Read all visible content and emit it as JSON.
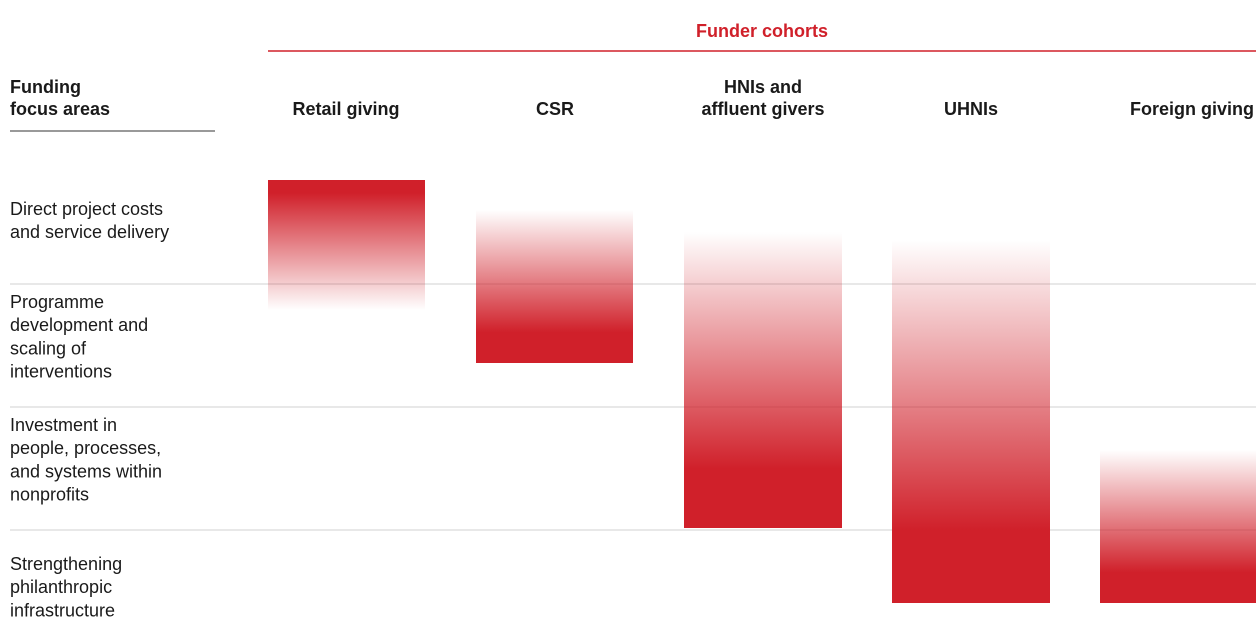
{
  "header": {
    "title": "Funder cohorts",
    "row_header": [
      "Funding",
      "focus areas"
    ]
  },
  "columns": [
    [
      "Retail giving"
    ],
    [
      "CSR"
    ],
    [
      "HNIs and",
      "affluent givers"
    ],
    [
      "UHNIs"
    ],
    [
      "Foreign giving"
    ]
  ],
  "rows": [
    [
      "Direct project costs",
      "and service delivery"
    ],
    [
      "Programme",
      "development and",
      "scaling of",
      "interventions"
    ],
    [
      "Investment in",
      "people, processes,",
      "and systems within",
      "nonprofits"
    ],
    [
      "Strengthening",
      "philanthropic",
      "infrastructure"
    ]
  ]
}
